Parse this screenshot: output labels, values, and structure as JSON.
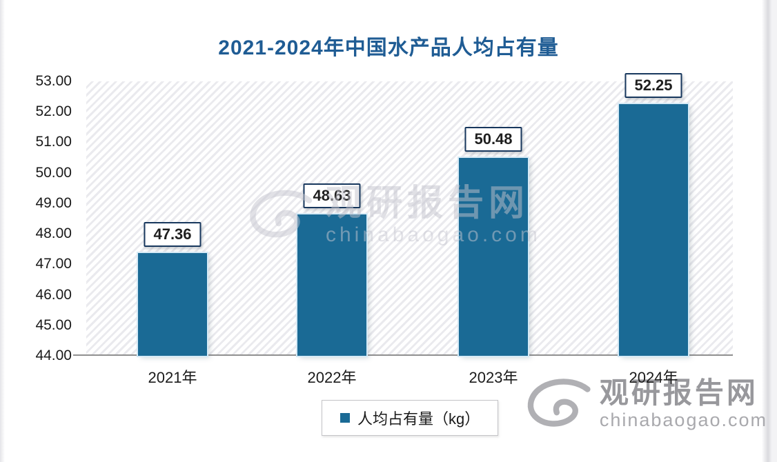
{
  "title": "2021-2024年中国水产品人均占有量",
  "chart_data": {
    "type": "bar",
    "title": "2021-2024年中国水产品人均占有量",
    "categories": [
      "2021年",
      "2022年",
      "2023年",
      "2024年"
    ],
    "values": [
      47.36,
      48.63,
      50.48,
      52.25
    ],
    "value_labels": [
      "47.36",
      "48.63",
      "50.48",
      "52.25"
    ],
    "series_name": "人均占有量（kg）",
    "unit": "kg",
    "ylim": [
      44,
      53
    ],
    "ytick_interval": 1,
    "yticks": [
      "53.00",
      "52.00",
      "51.00",
      "50.00",
      "49.00",
      "48.00",
      "47.00",
      "46.00",
      "45.00",
      "44.00"
    ],
    "xlabel": "",
    "ylabel": "",
    "grid": false,
    "legend_position": "bottom-center",
    "bar_color": "#1A6A95"
  },
  "legend": {
    "label": "人均占有量（kg）"
  },
  "watermark": {
    "brand": "观研报告网",
    "domain": "chinabaogao.com"
  },
  "colors": {
    "title": "#1F5C94",
    "bar": "#1A6A95",
    "bar_halo": "#D6EAF6",
    "label_border": "#17375D",
    "label_text": "#1F1F1F",
    "axis_line": "#8F8F8F",
    "tick_text": "#1A1A1A",
    "legend_border": "#C3C3C6",
    "hatch": "#EAEAEE",
    "watermark_center": "#C2C2CC",
    "watermark_bottom": "#98989C"
  }
}
